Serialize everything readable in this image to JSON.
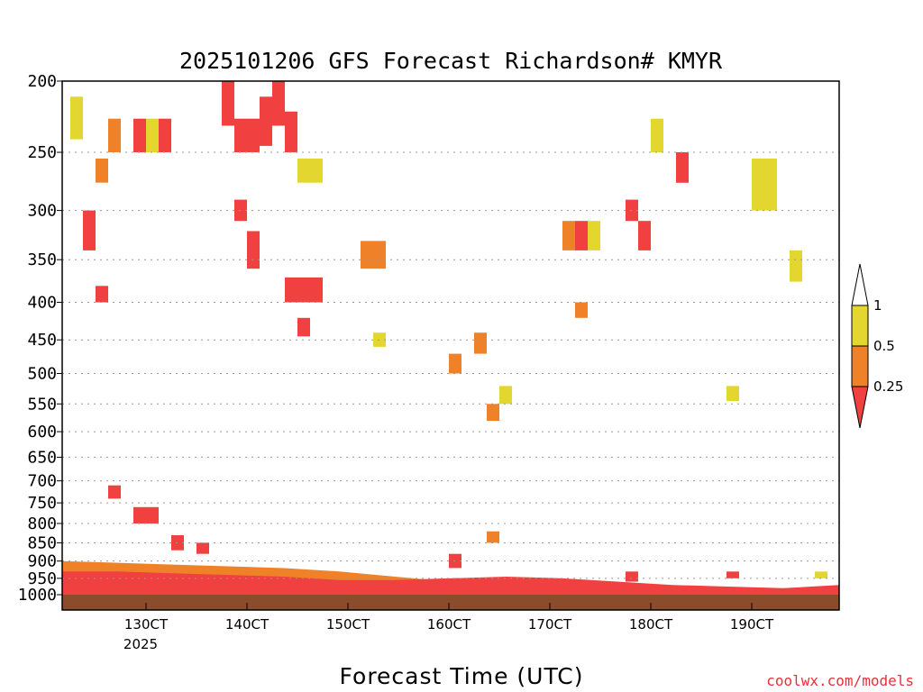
{
  "chart_data": {
    "type": "heatmap",
    "title": "2025101206 GFS Forecast Richardson# KMYR",
    "xlabel": "Forecast Time (UTC)",
    "ylabel": "",
    "x_range": [
      "12Oct 06Z",
      "19Oct 18Z"
    ],
    "x_ticks": [
      {
        "label": "130CT",
        "sublabel": "2025"
      },
      {
        "label": "140CT",
        "sublabel": ""
      },
      {
        "label": "150CT",
        "sublabel": ""
      },
      {
        "label": "160CT",
        "sublabel": ""
      },
      {
        "label": "170CT",
        "sublabel": ""
      },
      {
        "label": "180CT",
        "sublabel": ""
      },
      {
        "label": "190CT",
        "sublabel": ""
      }
    ],
    "y_axis": {
      "scale": "log-pressure (reversed)",
      "range": [
        200,
        1000
      ],
      "ticks": [
        "200",
        "250",
        "300",
        "350",
        "400",
        "450",
        "500",
        "550",
        "600",
        "650",
        "700",
        "750",
        "800",
        "850",
        "900",
        "950",
        "1000"
      ],
      "grid": "dotted horizontal"
    },
    "colorbar": {
      "labels": [
        "1",
        "0.5",
        "0.25"
      ],
      "bins": [
        {
          "range": "> 1",
          "color": "#ffffff"
        },
        {
          "range": "0.5 - 1",
          "color": "#e3d72f"
        },
        {
          "range": "0.25 - 0.5",
          "color": "#ef8229"
        },
        {
          "range": "< 0.25",
          "color": "#f04040"
        }
      ]
    },
    "colors": {
      "yellow": "#e3d72f",
      "orange": "#ef8229",
      "red": "#f04040",
      "ground": "#8b4c2b"
    },
    "cells": [
      {
        "t": "12Oct 06Z",
        "p": [
          210,
          240
        ],
        "cat": "yellow"
      },
      {
        "t": "12Oct 12Z",
        "p": [
          255,
          275
        ],
        "cat": "orange"
      },
      {
        "t": "12Oct 15Z",
        "p": [
          225,
          250
        ],
        "cat": "orange"
      },
      {
        "t": "12Oct 21Z",
        "p": [
          225,
          250
        ],
        "cat": "red"
      },
      {
        "t": "13Oct 00Z",
        "p": [
          225,
          250
        ],
        "cat": "yellow"
      },
      {
        "t": "13Oct 03Z",
        "p": [
          225,
          250
        ],
        "cat": "red"
      },
      {
        "t": "12Oct 09Z",
        "p": [
          300,
          340
        ],
        "cat": "red"
      },
      {
        "t": "12Oct 12Z",
        "p": [
          380,
          400
        ],
        "cat": "red"
      },
      {
        "t": "13Oct 18Z",
        "p": [
          200,
          230
        ],
        "cat": "red"
      },
      {
        "t": "13Oct 21Z",
        "p": [
          225,
          250
        ],
        "cat": "red"
      },
      {
        "t": "14Oct 00Z",
        "p": [
          225,
          250
        ],
        "cat": "red"
      },
      {
        "t": "14Oct 03Z",
        "p": [
          210,
          245
        ],
        "cat": "red"
      },
      {
        "t": "14Oct 06Z",
        "p": [
          200,
          230
        ],
        "cat": "red"
      },
      {
        "t": "14Oct 09Z",
        "p": [
          220,
          250
        ],
        "cat": "red"
      },
      {
        "t": "14Oct 12Z",
        "p": [
          255,
          275
        ],
        "cat": "yellow"
      },
      {
        "t": "14Oct 15Z",
        "p": [
          255,
          275
        ],
        "cat": "yellow"
      },
      {
        "t": "13Oct 21Z",
        "p": [
          290,
          310
        ],
        "cat": "red"
      },
      {
        "t": "14Oct 00Z",
        "p": [
          320,
          360
        ],
        "cat": "red"
      },
      {
        "t": "14Oct 09Z",
        "p": [
          370,
          400
        ],
        "cat": "red"
      },
      {
        "t": "14Oct 12Z",
        "p": [
          370,
          400
        ],
        "cat": "red"
      },
      {
        "t": "14Oct 15Z",
        "p": [
          370,
          400
        ],
        "cat": "red"
      },
      {
        "t": "14Oct 12Z",
        "p": [
          420,
          445
        ],
        "cat": "red"
      },
      {
        "t": "15Oct 03Z",
        "p": [
          330,
          360
        ],
        "cat": "orange"
      },
      {
        "t": "15Oct 06Z",
        "p": [
          330,
          360
        ],
        "cat": "orange"
      },
      {
        "t": "15Oct 06Z",
        "p": [
          440,
          460
        ],
        "cat": "yellow"
      },
      {
        "t": "16Oct 00Z",
        "p": [
          470,
          500
        ],
        "cat": "orange"
      },
      {
        "t": "16Oct 06Z",
        "p": [
          440,
          470
        ],
        "cat": "orange"
      },
      {
        "t": "16Oct 09Z",
        "p": [
          550,
          580
        ],
        "cat": "orange"
      },
      {
        "t": "16Oct 12Z",
        "p": [
          520,
          550
        ],
        "cat": "yellow"
      },
      {
        "t": "17Oct 03Z",
        "p": [
          310,
          340
        ],
        "cat": "orange"
      },
      {
        "t": "17Oct 06Z",
        "p": [
          310,
          340
        ],
        "cat": "red"
      },
      {
        "t": "17Oct 09Z",
        "p": [
          310,
          340
        ],
        "cat": "yellow"
      },
      {
        "t": "17Oct 18Z",
        "p": [
          290,
          310
        ],
        "cat": "red"
      },
      {
        "t": "17Oct 21Z",
        "p": [
          310,
          340
        ],
        "cat": "red"
      },
      {
        "t": "17Oct 06Z",
        "p": [
          400,
          420
        ],
        "cat": "orange"
      },
      {
        "t": "18Oct 06Z",
        "p": [
          250,
          275
        ],
        "cat": "red"
      },
      {
        "t": "18Oct 00Z",
        "p": [
          225,
          250
        ],
        "cat": "yellow"
      },
      {
        "t": "19Oct 00Z",
        "p": [
          255,
          300
        ],
        "cat": "yellow"
      },
      {
        "t": "19Oct 03Z",
        "p": [
          255,
          300
        ],
        "cat": "yellow"
      },
      {
        "t": "19Oct 09Z",
        "p": [
          340,
          375
        ],
        "cat": "yellow"
      },
      {
        "t": "18Oct 18Z",
        "p": [
          520,
          545
        ],
        "cat": "yellow"
      },
      {
        "t": "12Oct 15Z",
        "p": [
          710,
          740
        ],
        "cat": "red"
      },
      {
        "t": "12Oct 21Z",
        "p": [
          760,
          800
        ],
        "cat": "red"
      },
      {
        "t": "13Oct 00Z",
        "p": [
          760,
          800
        ],
        "cat": "red"
      },
      {
        "t": "13Oct 06Z",
        "p": [
          830,
          870
        ],
        "cat": "red"
      },
      {
        "t": "13Oct 12Z",
        "p": [
          850,
          880
        ],
        "cat": "red"
      },
      {
        "t": "16Oct 09Z",
        "p": [
          820,
          850
        ],
        "cat": "orange"
      },
      {
        "t": "16Oct 00Z",
        "p": [
          880,
          920
        ],
        "cat": "red"
      },
      {
        "t": "17Oct 18Z",
        "p": [
          930,
          960
        ],
        "cat": "red"
      },
      {
        "t": "18Oct 18Z",
        "p": [
          930,
          950
        ],
        "cat": "red"
      },
      {
        "t": "19Oct 15Z",
        "p": [
          930,
          950
        ],
        "cat": "yellow"
      }
    ],
    "near_surface_layer": {
      "description": "red/orange band from ~900 to 1000 hPa for the whole forecast",
      "orange_top_hpa": [
        900,
        905,
        910,
        915,
        920,
        930,
        945,
        960,
        970,
        980,
        985,
        990,
        995,
        995,
        995
      ],
      "red_top_hpa": [
        930,
        930,
        935,
        940,
        945,
        955,
        955,
        950,
        945,
        950,
        960,
        970,
        975,
        980,
        970
      ]
    }
  },
  "credit": "coolwx.com/models"
}
